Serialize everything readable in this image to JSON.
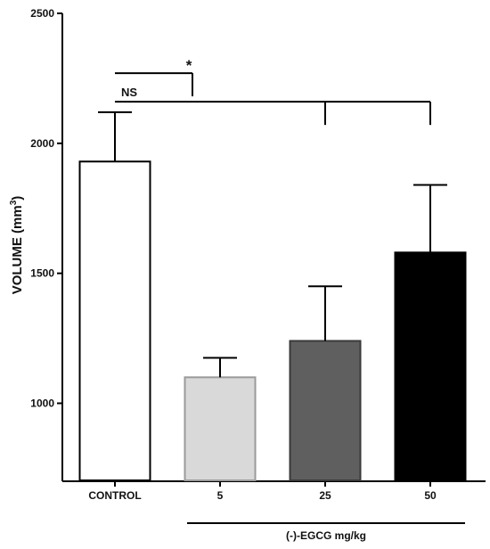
{
  "chart_data": {
    "type": "bar",
    "categories": [
      "CONTROL",
      "5",
      "25",
      "50"
    ],
    "values": [
      1930,
      1100,
      1240,
      1580
    ],
    "error_upper": [
      2120,
      1175,
      1450,
      1840
    ],
    "bar_fill": [
      "#ffffff",
      "#d9d9d9",
      "#5f5f5f",
      "#000000"
    ],
    "bar_stroke": [
      "#000000",
      "#9a9a9a",
      "#3a3a3a",
      "#000000"
    ],
    "ylim": [
      700,
      2500
    ],
    "yticks": [
      1000,
      1500,
      2000,
      2500
    ],
    "ylabel_main": "VOLUME (mm",
    "ylabel_sup": "3",
    "ylabel_end": ")",
    "group_label": "(-)-EGCG  mg/kg",
    "significance": {
      "star": {
        "label": "*",
        "from": 0,
        "to": 1,
        "level": 2270
      },
      "ns": {
        "label": "NS",
        "from": 0,
        "to": 3,
        "level": 2160,
        "drops": [
          2,
          3
        ]
      }
    }
  }
}
